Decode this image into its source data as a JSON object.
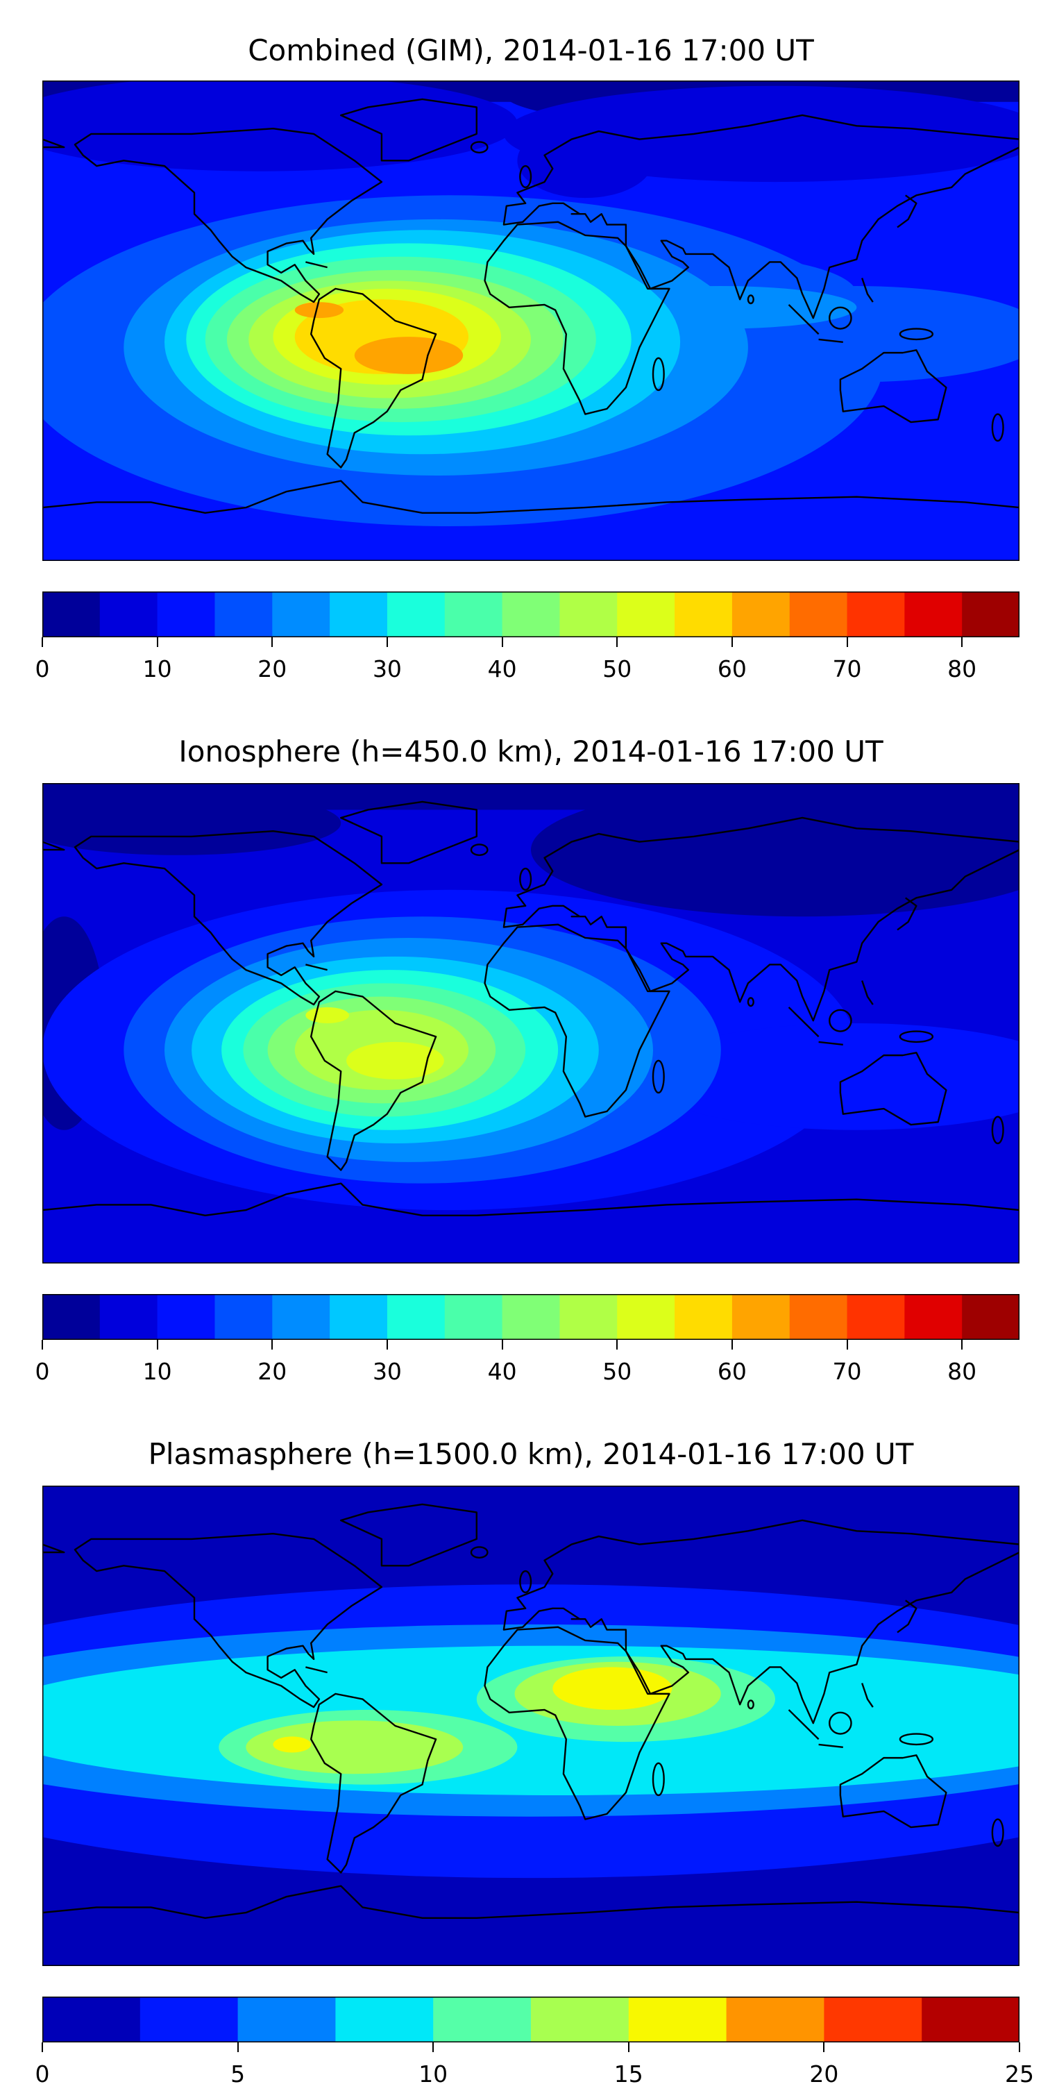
{
  "panels": [
    {
      "title": "Combined (GIM), 2014-01-16 17:00 UT",
      "colorbar": {
        "levels": [
          0,
          5,
          10,
          15,
          20,
          25,
          30,
          35,
          40,
          45,
          50,
          55,
          60,
          65,
          70,
          75,
          80,
          85
        ],
        "colors": [
          "#00009a",
          "#0000dc",
          "#0011ff",
          "#0050ff",
          "#008cff",
          "#00c8ff",
          "#1affdc",
          "#4affaa",
          "#80ff76",
          "#b0ff46",
          "#dcff1a",
          "#ffdc00",
          "#ffa400",
          "#ff6c00",
          "#ff3300",
          "#e00000",
          "#9e0000"
        ],
        "ticks": [
          "0",
          "10",
          "20",
          "30",
          "40",
          "50",
          "60",
          "70",
          "80"
        ],
        "tick_values": [
          0,
          10,
          20,
          30,
          40,
          50,
          60,
          70,
          80
        ]
      }
    },
    {
      "title": "Ionosphere  (h=450.0 km), 2014-01-16 17:00 UT",
      "colorbar": {
        "levels": [
          0,
          5,
          10,
          15,
          20,
          25,
          30,
          35,
          40,
          45,
          50,
          55,
          60,
          65,
          70,
          75,
          80,
          85
        ],
        "colors": [
          "#00009a",
          "#0000dc",
          "#0011ff",
          "#0050ff",
          "#008cff",
          "#00c8ff",
          "#1affdc",
          "#4affaa",
          "#80ff76",
          "#b0ff46",
          "#dcff1a",
          "#ffdc00",
          "#ffa400",
          "#ff6c00",
          "#ff3300",
          "#e00000",
          "#9e0000"
        ],
        "ticks": [
          "0",
          "10",
          "20",
          "30",
          "40",
          "50",
          "60",
          "70",
          "80"
        ],
        "tick_values": [
          0,
          10,
          20,
          30,
          40,
          50,
          60,
          70,
          80
        ]
      }
    },
    {
      "title": "Plasmasphere (h=1500.0 km), 2014-01-16 17:00 UT",
      "colorbar": {
        "levels": [
          0,
          2.5,
          5,
          7.5,
          10,
          12.5,
          15,
          17.5,
          20,
          22.5,
          25
        ],
        "colors": [
          "#0000b8",
          "#0018ff",
          "#0080ff",
          "#00e8f8",
          "#55ffa8",
          "#a8ff50",
          "#f8f800",
          "#ff9400",
          "#ff3800",
          "#b40000"
        ],
        "ticks": [
          "0",
          "5",
          "10",
          "15",
          "20",
          "25"
        ],
        "tick_values": [
          0,
          5,
          10,
          15,
          20,
          25
        ]
      }
    }
  ]
}
